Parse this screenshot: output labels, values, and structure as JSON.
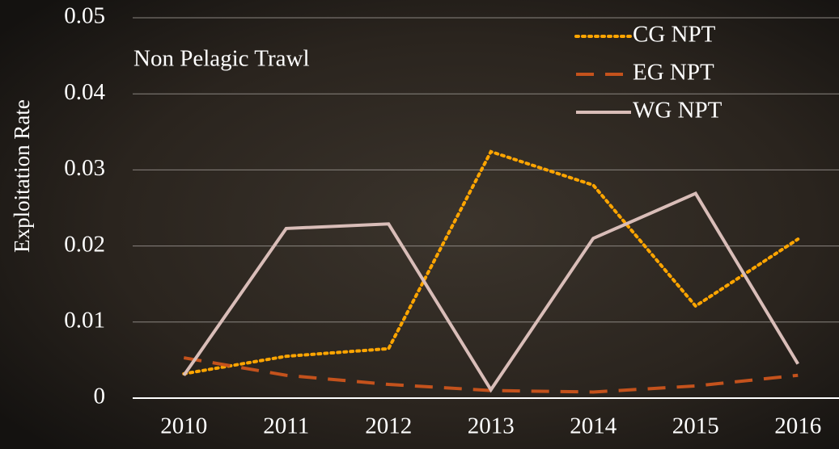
{
  "chart_data": {
    "type": "line",
    "annotation": "Non Pelagic Trawl",
    "y_label": "Exploitation Rate",
    "categories": [
      "2010",
      "2011",
      "2012",
      "2013",
      "2014",
      "2015",
      "2016"
    ],
    "series": [
      {
        "name": "CG NPT",
        "color": "#ffa500",
        "style": "dotted",
        "values": [
          0.0032,
          0.0055,
          0.0065,
          0.0324,
          0.028,
          0.0121,
          0.0209
        ]
      },
      {
        "name": "EG NPT",
        "color": "#c4521c",
        "style": "dashed",
        "values": [
          0.0053,
          0.003,
          0.0018,
          0.001,
          0.0008,
          0.0016,
          0.003
        ]
      },
      {
        "name": "WG NPT",
        "color": "#d9bdb8",
        "style": "solid",
        "values": [
          0.003,
          0.0223,
          0.0229,
          0.0011,
          0.021,
          0.0269,
          0.0045
        ]
      }
    ],
    "ylim": [
      0,
      0.05
    ],
    "yticks": [
      0,
      0.01,
      0.02,
      0.03,
      0.04,
      0.05
    ],
    "grid": true,
    "legend": "top-right"
  }
}
